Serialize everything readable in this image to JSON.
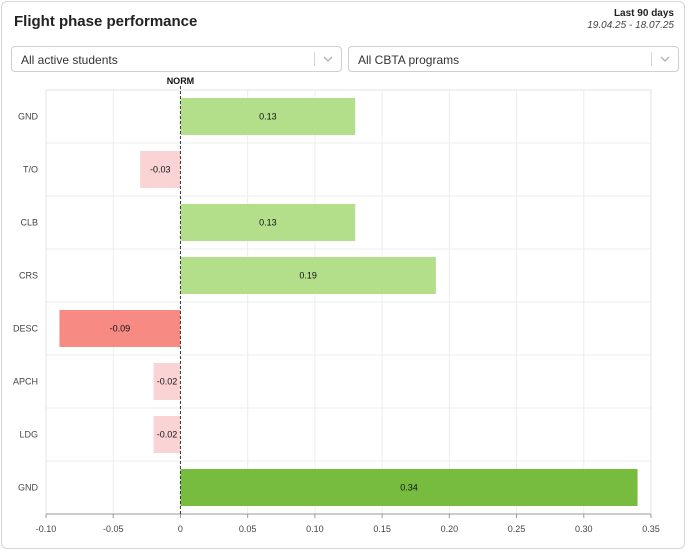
{
  "header": {
    "title": "Flight phase performance",
    "range_label": "Last 90 days",
    "range_dates": "19.04.25 - 18.07.25"
  },
  "filters": {
    "students": "All active students",
    "programs": "All CBTA programs"
  },
  "colors": {
    "positive_light": "#b3df8a",
    "positive_dark": "#77bb3f",
    "negative_light": "#fad4d4",
    "negative_dark": "#f78a82"
  },
  "chart_data": {
    "type": "bar",
    "orientation": "horizontal",
    "reference_label": "NORM",
    "reference_value": 0,
    "categories": [
      "GND",
      "T/O",
      "CLB",
      "CRS",
      "DESC",
      "APCH",
      "LDG",
      "GND"
    ],
    "values": [
      0.13,
      -0.03,
      0.13,
      0.19,
      -0.09,
      -0.02,
      -0.02,
      0.34
    ],
    "value_labels": [
      "0.13",
      "-0.03",
      "0.13",
      "0.19",
      "-0.09",
      "-0.02",
      "-0.02",
      "0.34"
    ],
    "xlim": [
      -0.1,
      0.35
    ],
    "xticks": [
      -0.1,
      -0.05,
      0,
      0.05,
      0.1,
      0.15,
      0.2,
      0.25,
      0.3,
      0.35
    ],
    "xtick_labels": [
      "-0.10",
      "-0.05",
      "0",
      "0.05",
      "0.10",
      "0.15",
      "0.20",
      "0.25",
      "0.30",
      "0.35"
    ],
    "grid": true
  }
}
